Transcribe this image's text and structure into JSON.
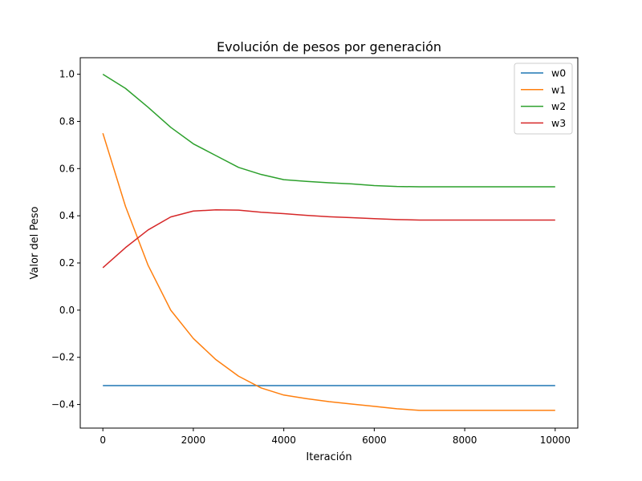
{
  "chart_data": {
    "type": "line",
    "title": "Evolución de pesos por generación",
    "xlabel": "Iteración",
    "ylabel": "Valor del Peso",
    "xlim": [
      -500,
      10500
    ],
    "ylim": [
      -0.5,
      1.07
    ],
    "xticks": [
      0,
      2000,
      4000,
      6000,
      8000,
      10000
    ],
    "xtick_labels": [
      "0",
      "2000",
      "4000",
      "6000",
      "8000",
      "10000"
    ],
    "yticks": [
      -0.4,
      -0.2,
      0.0,
      0.2,
      0.4,
      0.6,
      0.8,
      1.0
    ],
    "ytick_labels": [
      "−0.4",
      "−0.2",
      "0.0",
      "0.2",
      "0.4",
      "0.6",
      "0.8",
      "1.0"
    ],
    "grid": false,
    "legend_position": "top-right",
    "x": [
      0,
      500,
      1000,
      1500,
      2000,
      2500,
      3000,
      3500,
      4000,
      4500,
      5000,
      5500,
      6000,
      6500,
      7000,
      7500,
      8000,
      8500,
      9000,
      9500,
      10000
    ],
    "series": [
      {
        "name": "w0",
        "color": "#1f77b4",
        "values": [
          -0.32,
          -0.32,
          -0.32,
          -0.32,
          -0.32,
          -0.32,
          -0.32,
          -0.32,
          -0.32,
          -0.32,
          -0.32,
          -0.32,
          -0.32,
          -0.32,
          -0.32,
          -0.32,
          -0.32,
          -0.32,
          -0.32,
          -0.32,
          -0.32
        ]
      },
      {
        "name": "w1",
        "color": "#ff7f0e",
        "values": [
          0.75,
          0.44,
          0.19,
          -0.0,
          -0.12,
          -0.21,
          -0.28,
          -0.33,
          -0.36,
          -0.375,
          -0.388,
          -0.398,
          -0.408,
          -0.418,
          -0.425,
          -0.425,
          -0.425,
          -0.425,
          -0.425,
          -0.425,
          -0.425
        ]
      },
      {
        "name": "w2",
        "color": "#2ca02c",
        "values": [
          1.0,
          0.94,
          0.86,
          0.775,
          0.705,
          0.655,
          0.605,
          0.575,
          0.553,
          0.546,
          0.54,
          0.535,
          0.528,
          0.524,
          0.523,
          0.523,
          0.523,
          0.523,
          0.523,
          0.523,
          0.523
        ]
      },
      {
        "name": "w3",
        "color": "#d62728",
        "values": [
          0.18,
          0.265,
          0.34,
          0.395,
          0.42,
          0.425,
          0.424,
          0.415,
          0.409,
          0.402,
          0.396,
          0.392,
          0.388,
          0.384,
          0.382,
          0.382,
          0.382,
          0.382,
          0.382,
          0.382,
          0.382
        ]
      }
    ]
  }
}
